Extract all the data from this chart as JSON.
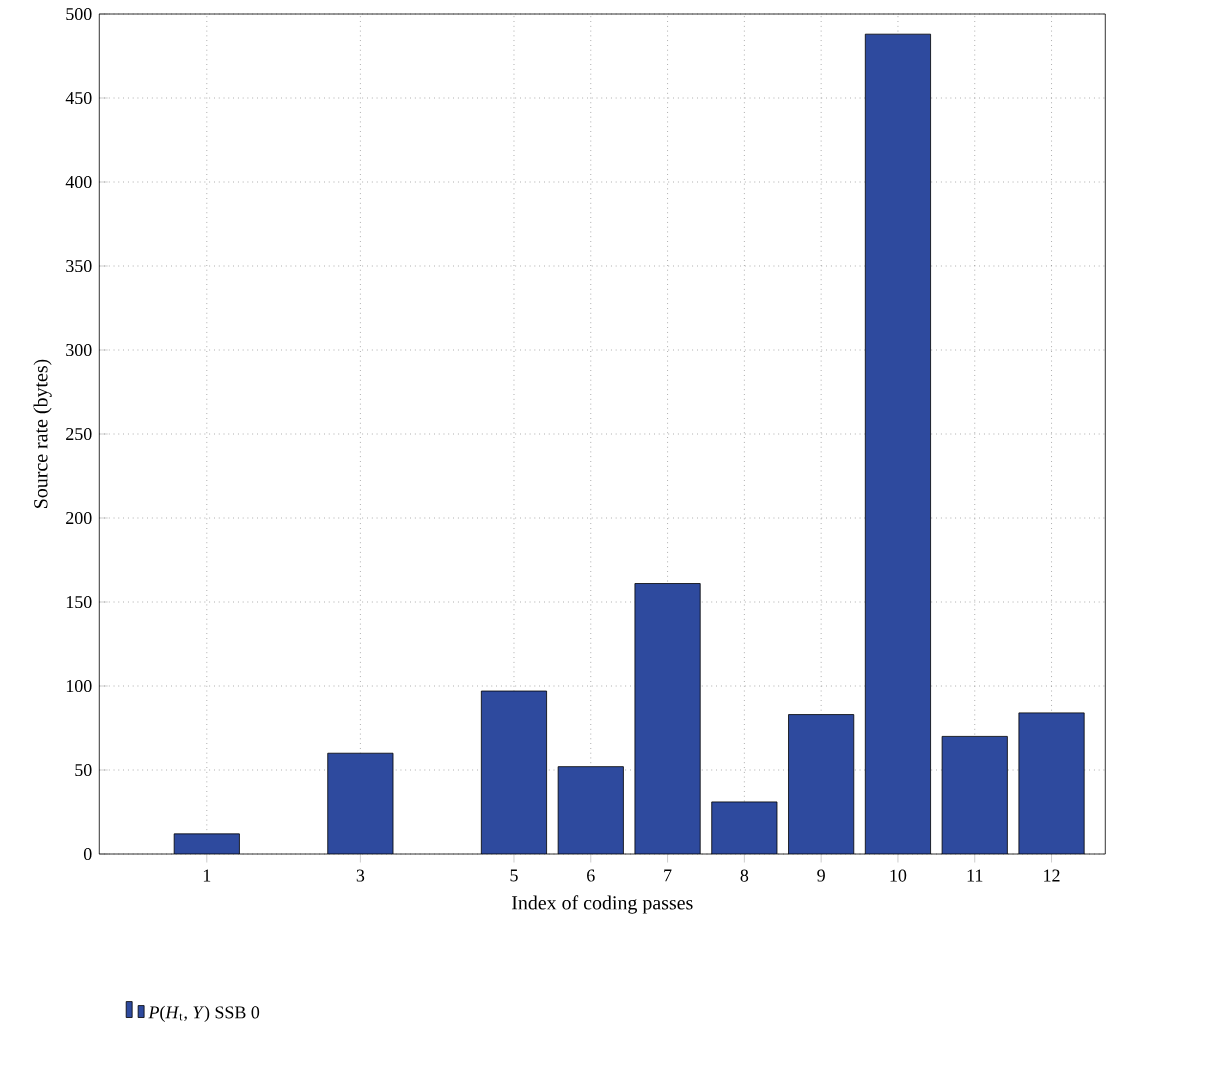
{
  "chart_data": {
    "type": "bar",
    "xlabel": "Index of coding passes",
    "ylabel": "Source rate (bytes)",
    "x": [
      1,
      3,
      5,
      6,
      7,
      8,
      9,
      10,
      11,
      12
    ],
    "series": [
      {
        "name": "*P*(*H*$_{t}$, *Y*) SSB 0",
        "color": "#2e4a9e",
        "values": [
          12,
          60,
          97,
          52,
          161,
          31,
          83,
          488,
          70,
          84
        ]
      }
    ],
    "xlim": [
      -0.4,
      12.7
    ],
    "xticks": [
      1,
      3,
      5,
      6,
      7,
      8,
      9,
      10,
      11,
      12
    ],
    "ylim": [
      0,
      500
    ],
    "yticks": [
      0,
      50,
      100,
      150,
      200,
      250,
      300,
      350,
      400,
      450,
      500
    ],
    "grid": true,
    "legend": "bottom"
  }
}
